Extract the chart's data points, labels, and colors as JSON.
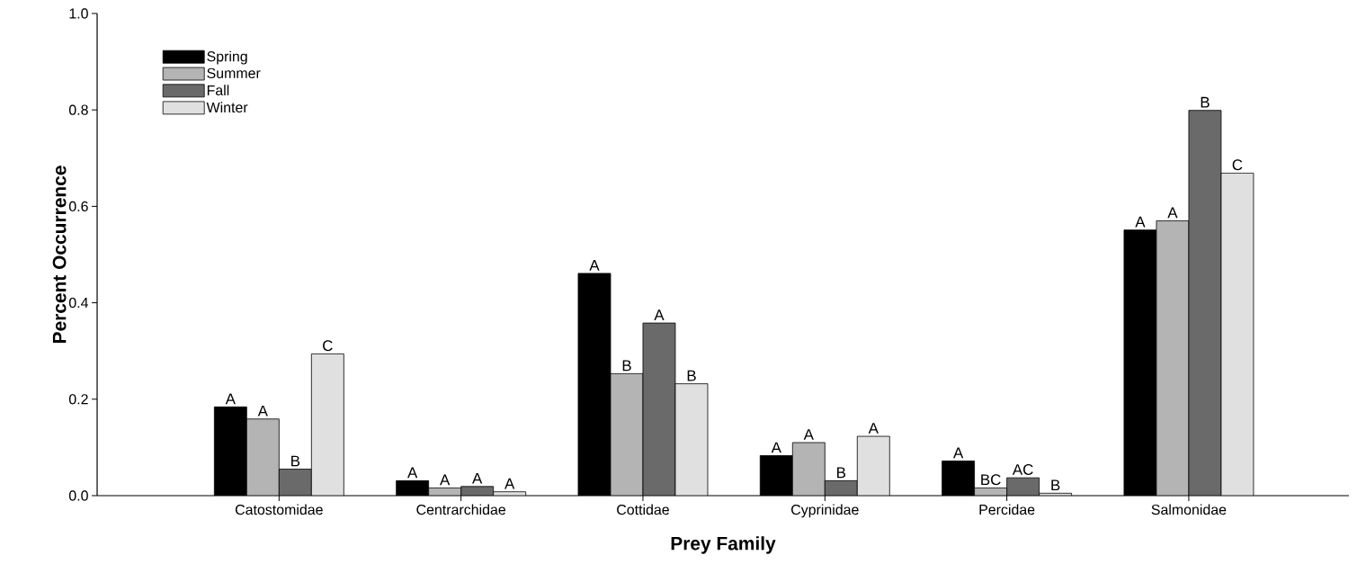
{
  "chart_data": {
    "type": "bar",
    "xlabel": "Prey Family",
    "ylabel": "Percent Occurrence",
    "categories": [
      "Catostomidae",
      "Centrarchidae",
      "Cottidae",
      "Cyprinidae",
      "Percidae",
      "Salmonidae"
    ],
    "series": [
      {
        "name": "Spring",
        "color": "#000000",
        "values": [
          0.184,
          0.031,
          0.461,
          0.083,
          0.072,
          0.551
        ],
        "value_labels": [
          "A",
          "A",
          "A",
          "A",
          "A",
          "A"
        ]
      },
      {
        "name": "Summer",
        "color": "#b4b4b4",
        "values": [
          0.159,
          0.016,
          0.253,
          0.11,
          0.016,
          0.57
        ],
        "value_labels": [
          "A",
          "A",
          "B",
          "A",
          "BC",
          "A"
        ]
      },
      {
        "name": "Fall",
        "color": "#6a6a6a",
        "values": [
          0.055,
          0.019,
          0.358,
          0.031,
          0.037,
          0.799
        ],
        "value_labels": [
          "B",
          "A",
          "A",
          "B",
          "AC",
          "B"
        ]
      },
      {
        "name": "Winter",
        "color": "#e0e0e0",
        "values": [
          0.294,
          0.008,
          0.232,
          0.123,
          0.005,
          0.669
        ],
        "value_labels": [
          "C",
          "A",
          "B",
          "A",
          "B",
          "C"
        ]
      }
    ],
    "ylim": [
      0,
      1
    ],
    "yticks": [
      {
        "value": 0,
        "label": "0.0"
      },
      {
        "value": 0.2,
        "label": "0.2"
      },
      {
        "value": 0.4,
        "label": "0.4"
      },
      {
        "value": 0.6,
        "label": "0.6"
      },
      {
        "value": 0.8,
        "label": "0.8"
      },
      {
        "value": 1,
        "label": "1.0"
      }
    ],
    "legend": "top left",
    "grid": false
  }
}
